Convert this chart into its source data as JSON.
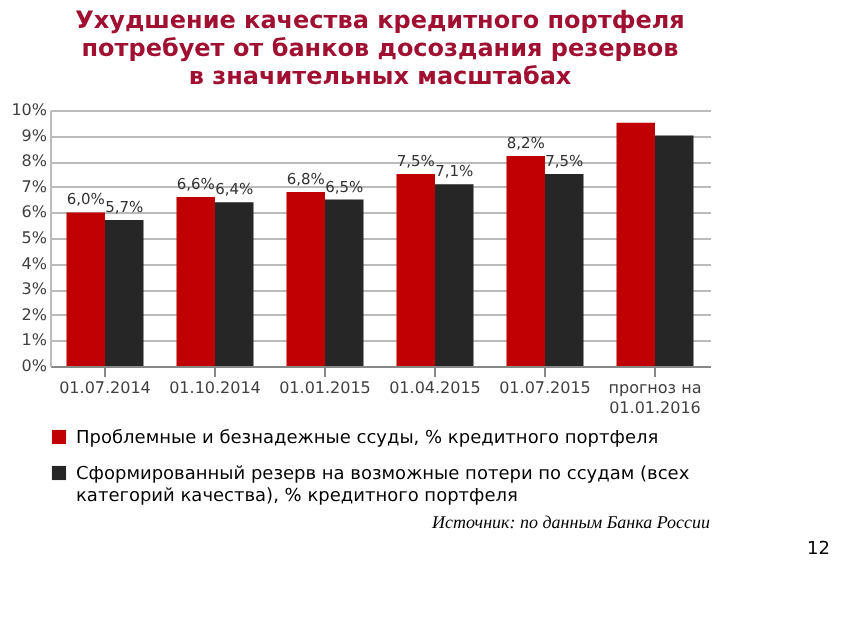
{
  "chart_data": {
    "type": "bar",
    "title": "Ухудшение качества кредитного портфеля потребует от банков досоздания резервов в значительных масштабах",
    "categories": [
      "01.07.2014",
      "01.10.2014",
      "01.01.2015",
      "01.04.2015",
      "01.07.2015",
      "прогноз на 01.01.2016"
    ],
    "series": [
      {
        "name": "Проблемные и безнадежные ссуды, % кредитного портфеля",
        "color": "#c00000",
        "values": [
          6.0,
          6.6,
          6.8,
          7.5,
          8.2,
          9.5
        ],
        "value_labels": [
          "6,0%",
          "6,6%",
          "6,8%",
          "7,5%",
          "8,2%",
          null
        ]
      },
      {
        "name": "Сформированный резерв на возможные потери по ссудам (всех категорий качества), % кредитного портфеля",
        "color": "#262626",
        "values": [
          5.7,
          6.4,
          6.5,
          7.1,
          7.5,
          9.0
        ],
        "value_labels": [
          "5,7%",
          "6,4%",
          "6,5%",
          "7,1%",
          "7,5%",
          null
        ]
      }
    ],
    "ylim": [
      0,
      10
    ],
    "yticks": [
      {
        "value": 0,
        "label": "0%"
      },
      {
        "value": 1,
        "label": "1%"
      },
      {
        "value": 2,
        "label": "2%"
      },
      {
        "value": 3,
        "label": "3%"
      },
      {
        "value": 4,
        "label": "4%"
      },
      {
        "value": 5,
        "label": "5%"
      },
      {
        "value": 6,
        "label": "6%"
      },
      {
        "value": 7,
        "label": "7%"
      },
      {
        "value": 8,
        "label": "8%"
      },
      {
        "value": 9,
        "label": "9%"
      },
      {
        "value": 10,
        "label": "10%"
      }
    ],
    "grid": "y",
    "legend": "bottom",
    "annotations": [
      "Источник: по данным Банка России",
      "12"
    ]
  }
}
